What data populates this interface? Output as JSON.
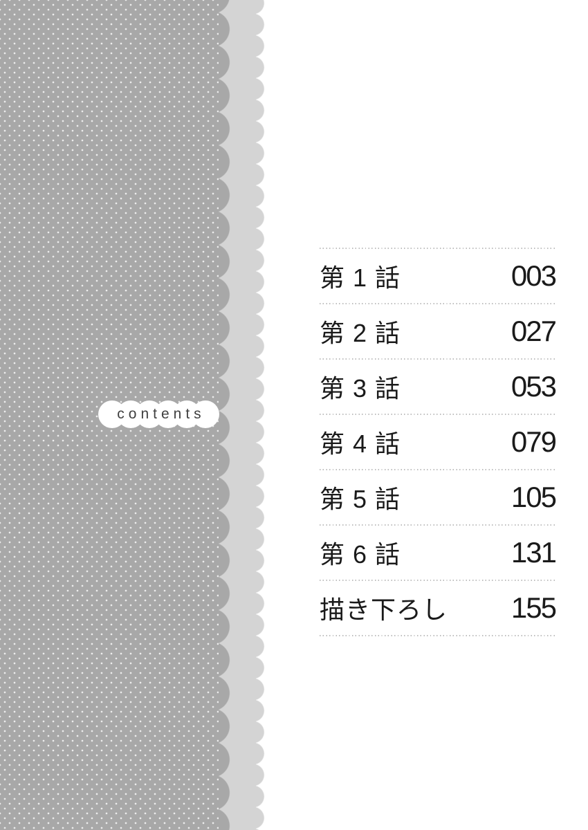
{
  "page": {
    "background_color": "#ffffff"
  },
  "left_panel": {
    "band_color": "#a8a8a8",
    "dot_color": "#ececec",
    "under_band_color": "#d4d4d4",
    "contents_label": "contents"
  },
  "toc": {
    "entries": [
      {
        "label": "第 1 話",
        "page": "003"
      },
      {
        "label": "第 2 話",
        "page": "027"
      },
      {
        "label": "第 3 話",
        "page": "053"
      },
      {
        "label": "第 4 話",
        "page": "079"
      },
      {
        "label": "第 5 話",
        "page": "105"
      },
      {
        "label": "第 6 話",
        "page": "131"
      },
      {
        "label": "描き下ろし",
        "page": "155"
      }
    ]
  }
}
